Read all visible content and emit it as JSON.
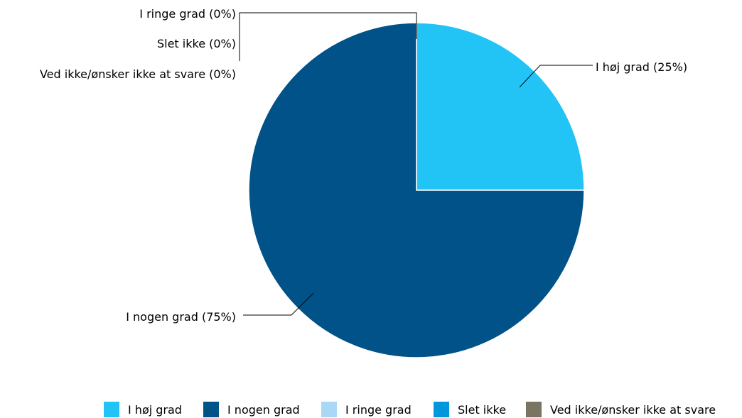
{
  "chart_data": {
    "type": "pie",
    "title": "",
    "categories": [
      "I høj grad",
      "I nogen grad",
      "I ringe grad",
      "Slet ikke",
      "Ved ikke/ønsker ikke at svare"
    ],
    "values": [
      25,
      75,
      0,
      0,
      0
    ],
    "unit": "%",
    "colors": [
      "#22c4f5",
      "#005288",
      "#a9d8f6",
      "#0097dc",
      "#7a7462"
    ],
    "slice_labels": [
      "I høj grad (25%)",
      "I nogen grad (75%)",
      "I ringe grad (0%)",
      "Slet ikke (0%)",
      "Ved ikke/ønsker ikke at svare (0%)"
    ],
    "legend": {
      "placement": "bottom",
      "items": [
        "I høj grad",
        "I nogen grad",
        "I ringe grad",
        "Slet ikke",
        "Ved ikke/ønsker ikke at svare"
      ]
    },
    "grid": false
  }
}
